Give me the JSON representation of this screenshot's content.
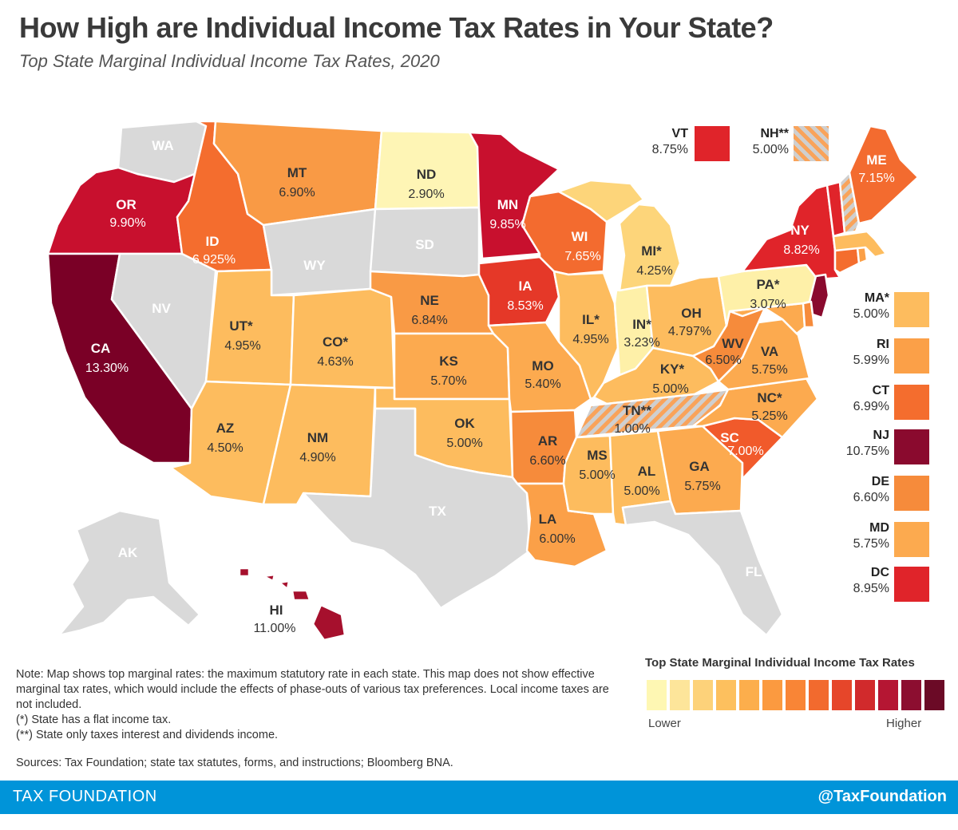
{
  "title": "How High are Individual Income Tax Rates in Your State?",
  "subtitle": "Top State Marginal Individual Income Tax Rates, 2020",
  "colors": {
    "no_tax": "#d9d9d9",
    "scale": [
      "#fef7b3",
      "#fde59a",
      "#fdd27a",
      "#fdc05e",
      "#fcae4c",
      "#fb9a40",
      "#f98536",
      "#f26a2e",
      "#e6462a",
      "#d12a2c",
      "#b51633",
      "#8c0e30",
      "#6b0a26"
    ],
    "hatch_a": "#f9a35a",
    "hatch_b": "#cfcfcf"
  },
  "states": {
    "WA": {
      "label": "WA",
      "rate": "",
      "color": "#d9d9d9",
      "text_color": "#ffffff"
    },
    "OR": {
      "label": "OR",
      "rate": "9.90%",
      "color": "#c8102e",
      "text_color": "#ffffff"
    },
    "CA": {
      "label": "CA",
      "rate": "13.30%",
      "color": "#7a0026",
      "text_color": "#ffffff"
    },
    "NV": {
      "label": "NV",
      "rate": "",
      "color": "#d9d9d9",
      "text_color": "#ffffff"
    },
    "ID": {
      "label": "ID",
      "rate": "6.925%",
      "color": "#f46d2e",
      "text_color": "#ffffff"
    },
    "MT": {
      "label": "MT",
      "rate": "6.90%",
      "color": "#f99a45",
      "text_color": "#333333"
    },
    "WY": {
      "label": "WY",
      "rate": "",
      "color": "#d9d9d9",
      "text_color": "#ffffff"
    },
    "UT": {
      "label": "UT*",
      "rate": "4.95%",
      "color": "#fdbc5e",
      "text_color": "#333333"
    },
    "CO": {
      "label": "CO*",
      "rate": "4.63%",
      "color": "#fdbc5e",
      "text_color": "#333333"
    },
    "AZ": {
      "label": "AZ",
      "rate": "4.50%",
      "color": "#fdbc5e",
      "text_color": "#333333"
    },
    "NM": {
      "label": "NM",
      "rate": "4.90%",
      "color": "#fdbc5e",
      "text_color": "#333333"
    },
    "ND": {
      "label": "ND",
      "rate": "2.90%",
      "color": "#fef5b5",
      "text_color": "#333333"
    },
    "SD": {
      "label": "SD",
      "rate": "",
      "color": "#d9d9d9",
      "text_color": "#ffffff"
    },
    "NE": {
      "label": "NE",
      "rate": "6.84%",
      "color": "#f99a45",
      "text_color": "#333333"
    },
    "KS": {
      "label": "KS",
      "rate": "5.70%",
      "color": "#fcaa4f",
      "text_color": "#333333"
    },
    "OK": {
      "label": "OK",
      "rate": "5.00%",
      "color": "#fdbc5e",
      "text_color": "#333333"
    },
    "TX": {
      "label": "TX",
      "rate": "",
      "color": "#d9d9d9",
      "text_color": "#ffffff"
    },
    "MN": {
      "label": "MN",
      "rate": "9.85%",
      "color": "#c8102e",
      "text_color": "#ffffff"
    },
    "IA": {
      "label": "IA",
      "rate": "8.53%",
      "color": "#e53828",
      "text_color": "#ffffff"
    },
    "MO": {
      "label": "MO",
      "rate": "5.40%",
      "color": "#fcaa4f",
      "text_color": "#333333"
    },
    "AR": {
      "label": "AR",
      "rate": "6.60%",
      "color": "#f68b3b",
      "text_color": "#333333"
    },
    "LA": {
      "label": "LA",
      "rate": "6.00%",
      "color": "#fba048",
      "text_color": "#333333"
    },
    "WI": {
      "label": "WI",
      "rate": "7.65%",
      "color": "#f36b2f",
      "text_color": "#ffffff"
    },
    "IL": {
      "label": "IL*",
      "rate": "4.95%",
      "color": "#fdbc5e",
      "text_color": "#333333"
    },
    "MI": {
      "label": "MI*",
      "rate": "4.25%",
      "color": "#fdd57a",
      "text_color": "#333333"
    },
    "IN": {
      "label": "IN*",
      "rate": "3.23%",
      "color": "#fef0a8",
      "text_color": "#333333"
    },
    "OH": {
      "label": "OH",
      "rate": "4.797%",
      "color": "#fdbc5e",
      "text_color": "#333333"
    },
    "KY": {
      "label": "KY*",
      "rate": "5.00%",
      "color": "#fdbc5e",
      "text_color": "#333333"
    },
    "TN": {
      "label": "TN**",
      "rate": "1.00%",
      "color": "hatch",
      "text_color": "#333333"
    },
    "MS": {
      "label": "MS",
      "rate": "5.00%",
      "color": "#fdbc5e",
      "text_color": "#333333"
    },
    "AL": {
      "label": "AL",
      "rate": "5.00%",
      "color": "#fdbc5e",
      "text_color": "#333333"
    },
    "GA": {
      "label": "GA",
      "rate": "5.75%",
      "color": "#fcaa4f",
      "text_color": "#333333"
    },
    "FL": {
      "label": "FL",
      "rate": "",
      "color": "#d9d9d9",
      "text_color": "#ffffff"
    },
    "SC": {
      "label": "SC",
      "rate": "7.00%",
      "color": "#f15a2b",
      "text_color": "#ffffff"
    },
    "NC": {
      "label": "NC*",
      "rate": "5.25%",
      "color": "#fcaa4f",
      "text_color": "#333333"
    },
    "VA": {
      "label": "VA",
      "rate": "5.75%",
      "color": "#fcaa4f",
      "text_color": "#333333"
    },
    "WV": {
      "label": "WV",
      "rate": "6.50%",
      "color": "#f68b3b",
      "text_color": "#333333"
    },
    "PA": {
      "label": "PA*",
      "rate": "3.07%",
      "color": "#fef0a8",
      "text_color": "#333333"
    },
    "NY": {
      "label": "NY",
      "rate": "8.82%",
      "color": "#e0242a",
      "text_color": "#ffffff"
    },
    "ME": {
      "label": "ME",
      "rate": "7.15%",
      "color": "#f36b2f",
      "text_color": "#ffffff"
    },
    "VT": {
      "label": "VT",
      "rate": "8.75%",
      "color": "#e0242a",
      "text_color": "#ffffff"
    },
    "NH": {
      "label": "NH**",
      "rate": "5.00%",
      "color": "hatch",
      "text_color": "#333333"
    },
    "MA": {
      "label": "MA*",
      "rate": "5.00%",
      "color": "#fdbc5e",
      "text_color": "#333333"
    },
    "RI": {
      "label": "RI",
      "rate": "5.99%",
      "color": "#fba048",
      "text_color": "#333333"
    },
    "CT": {
      "label": "CT",
      "rate": "6.99%",
      "color": "#f46d2e",
      "text_color": "#333333"
    },
    "NJ": {
      "label": "NJ",
      "rate": "10.75%",
      "color": "#8a0a2e",
      "text_color": "#333333"
    },
    "DE": {
      "label": "DE",
      "rate": "6.60%",
      "color": "#f68b3b",
      "text_color": "#333333"
    },
    "MD": {
      "label": "MD",
      "rate": "5.75%",
      "color": "#fcaa4f",
      "text_color": "#333333"
    },
    "DC": {
      "label": "DC",
      "rate": "8.95%",
      "color": "#e0242a",
      "text_color": "#333333"
    },
    "AK": {
      "label": "AK",
      "rate": "",
      "color": "#d9d9d9",
      "text_color": "#ffffff"
    },
    "HI": {
      "label": "HI",
      "rate": "11.00%",
      "color": "#a6102d",
      "text_color": "#333333"
    }
  },
  "legend": {
    "scale_title": "Top State Marginal Individual Income Tax Rates",
    "low_label": "Lower",
    "high_label": "Higher"
  },
  "notes": [
    "Note: Map shows top marginal rates: the maximum statutory rate in each state. This map does not show effective marginal tax rates, which would include the effects of phase-outs of various tax preferences. Local income taxes are not included.",
    "(*) State has a flat income tax.",
    "(**) State only taxes interest and dividends income."
  ],
  "sources": "Sources: Tax Foundation; state tax statutes, forms, and instructions; Bloomberg BNA.",
  "footer": {
    "left": "TAX FOUNDATION",
    "right": "@TaxFoundation"
  }
}
